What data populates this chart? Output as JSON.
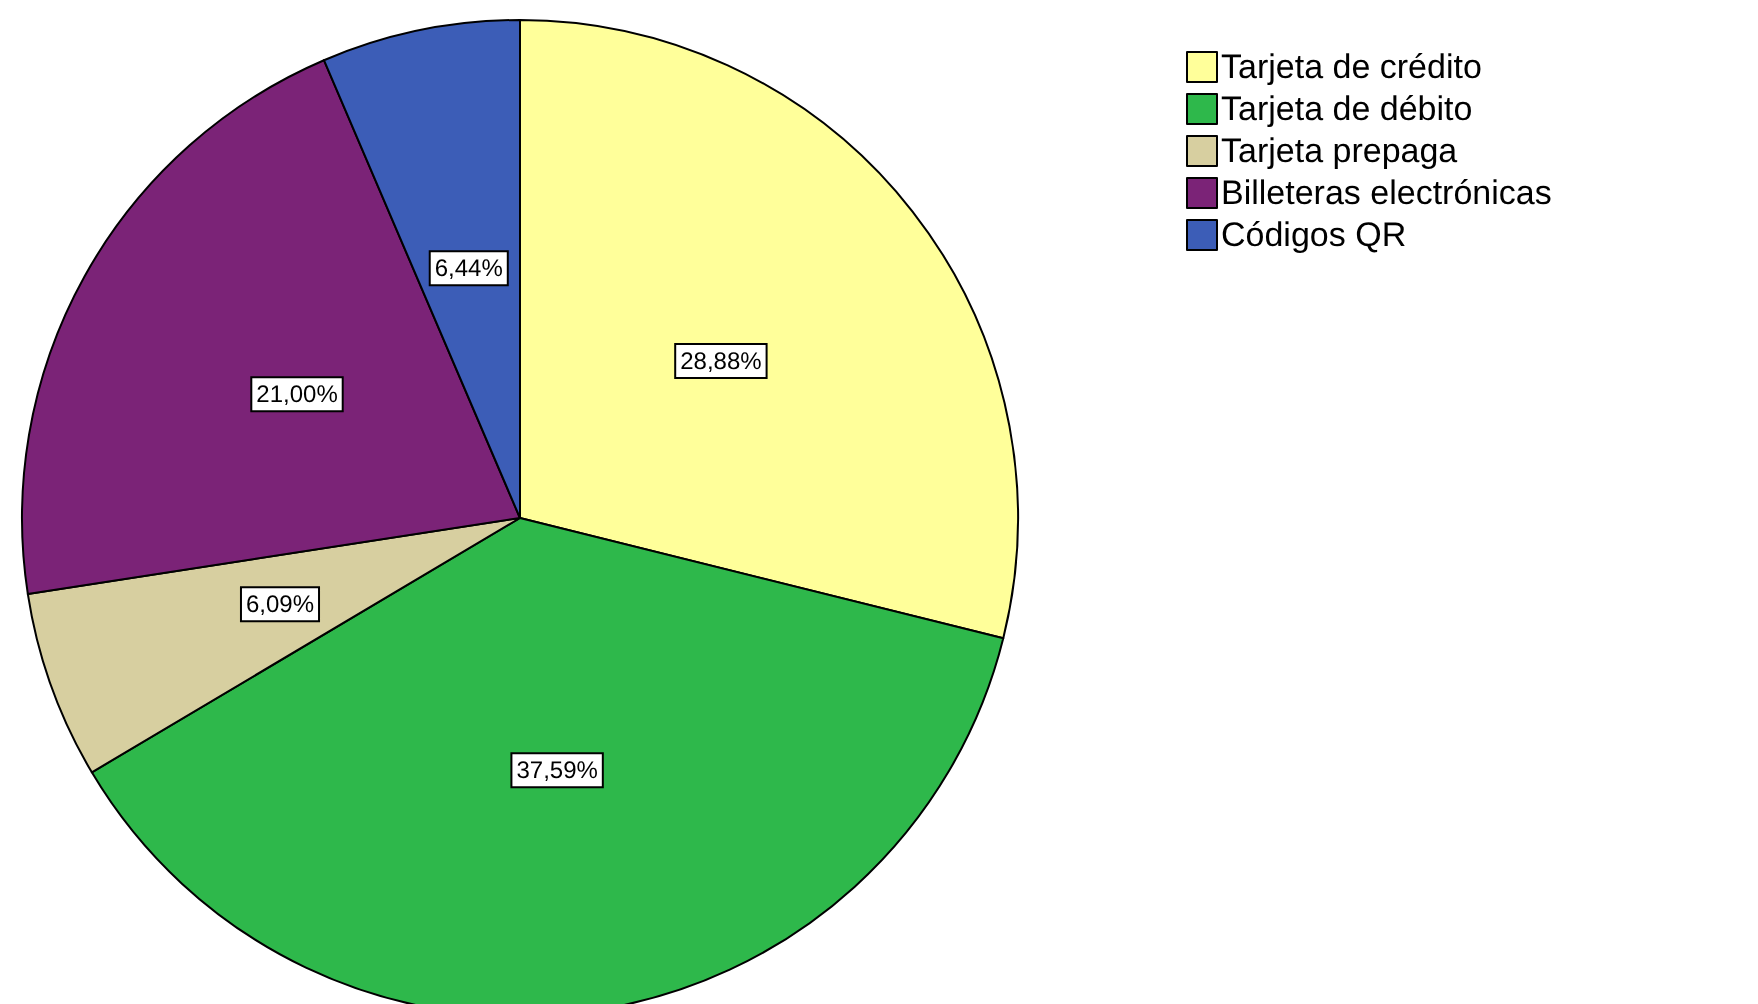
{
  "chart_data": {
    "type": "pie",
    "categories": [
      "Tarjeta de crédito",
      "Tarjeta de débito",
      "Tarjeta prepaga",
      "Billeteras electrónicas",
      "Códigos QR"
    ],
    "values": [
      28.88,
      37.59,
      6.09,
      21.0,
      6.44
    ],
    "colors": [
      "#ffff9a",
      "#2eb84b",
      "#d7cfa0",
      "#7b2377",
      "#3c5db7"
    ],
    "value_labels": [
      "28,88%",
      "37,59%",
      "6,09%",
      "21,00%",
      "6,44%"
    ],
    "legend": "top right"
  }
}
